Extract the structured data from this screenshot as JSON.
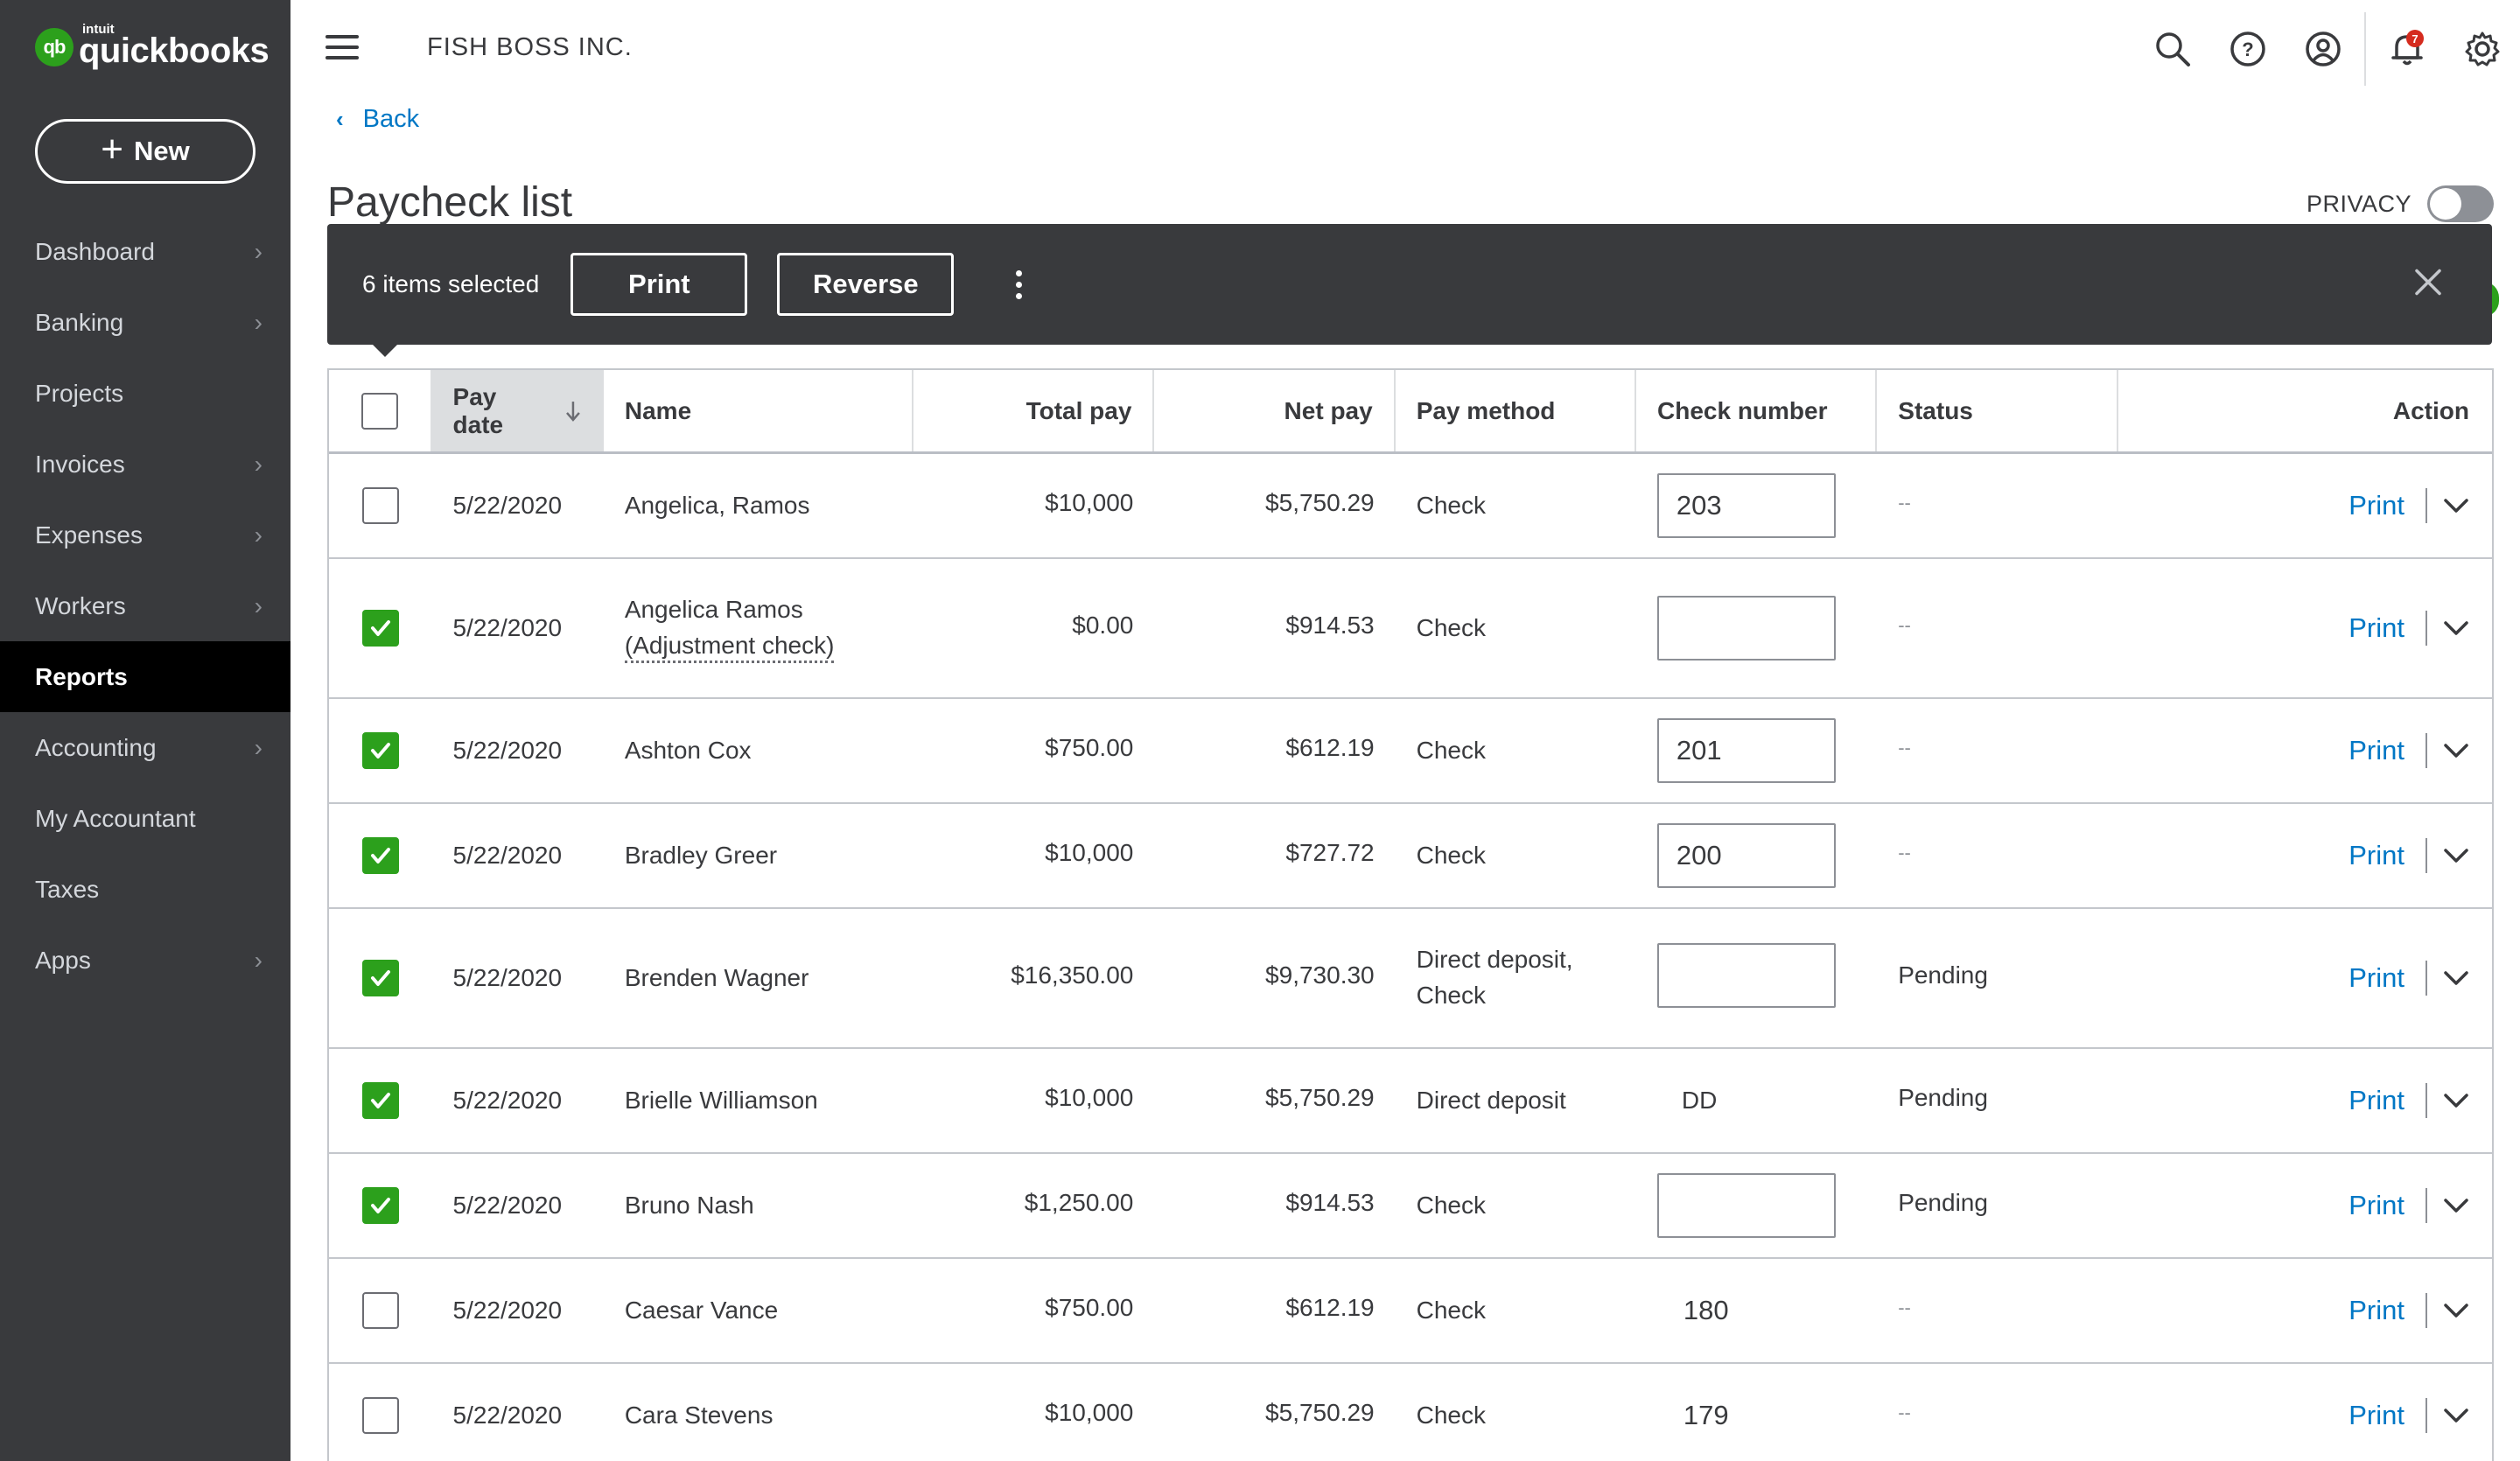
{
  "brand": {
    "intuit": "intuit",
    "name": "quickbooks",
    "mark": "qb"
  },
  "sidebar": {
    "new_label": "New",
    "items": [
      {
        "label": "Dashboard",
        "chevron": true,
        "active": false
      },
      {
        "label": "Banking",
        "chevron": true,
        "active": false
      },
      {
        "label": "Projects",
        "chevron": false,
        "active": false
      },
      {
        "label": "Invoices",
        "chevron": true,
        "active": false
      },
      {
        "label": "Expenses",
        "chevron": true,
        "active": false
      },
      {
        "label": "Workers",
        "chevron": true,
        "active": false
      },
      {
        "label": "Reports",
        "chevron": false,
        "active": true
      },
      {
        "label": "Accounting",
        "chevron": true,
        "active": false
      },
      {
        "label": "My Accountant",
        "chevron": false,
        "active": false
      },
      {
        "label": "Taxes",
        "chevron": false,
        "active": false
      },
      {
        "label": "Apps",
        "chevron": true,
        "active": false
      }
    ]
  },
  "header": {
    "company": "FISH BOSS INC.",
    "notification_count": "7",
    "icons": [
      "search-icon",
      "help-icon",
      "account-icon",
      "notification-bell-icon",
      "settings-gear-icon"
    ]
  },
  "page": {
    "back_label": "Back",
    "title": "Paycheck list",
    "privacy_label": "PRIVACY",
    "privacy_on": false
  },
  "selection_bar": {
    "count_text": "6 items selected",
    "print_label": "Print",
    "reverse_label": "Reverse"
  },
  "table": {
    "columns": {
      "pay_date": "Pay date",
      "name": "Name",
      "total_pay": "Total pay",
      "net_pay": "Net pay",
      "pay_method": "Pay method",
      "check_number": "Check number",
      "status": "Status",
      "action": "Action"
    },
    "rows": [
      {
        "checked": false,
        "date": "5/22/2020",
        "name": "Angelica, Ramos",
        "name_sub": "",
        "total": "$10,000",
        "net": "$5,750.29",
        "method": "Check",
        "method2": "",
        "check": "203",
        "check_editable": true,
        "status": "--",
        "action": "Print"
      },
      {
        "checked": true,
        "date": "5/22/2020",
        "name": "Angelica Ramos",
        "name_sub": "(Adjustment check)",
        "total": "$0.00",
        "net": "$914.53",
        "method": "Check",
        "method2": "",
        "check": "",
        "check_editable": true,
        "status": "--",
        "action": "Print"
      },
      {
        "checked": true,
        "date": "5/22/2020",
        "name": "Ashton Cox",
        "name_sub": "",
        "total": "$750.00",
        "net": "$612.19",
        "method": "Check",
        "method2": "",
        "check": "201",
        "check_editable": true,
        "status": "--",
        "action": "Print"
      },
      {
        "checked": true,
        "date": "5/22/2020",
        "name": "Bradley Greer",
        "name_sub": "",
        "total": "$10,000",
        "net": "$727.72",
        "method": "Check",
        "method2": "",
        "check": "200",
        "check_editable": true,
        "status": "--",
        "action": "Print"
      },
      {
        "checked": true,
        "date": "5/22/2020",
        "name": "Brenden Wagner",
        "name_sub": "",
        "total": "$16,350.00",
        "net": "$9,730.30",
        "method": "Direct deposit,",
        "method2": "Check",
        "check": "",
        "check_editable": true,
        "status": "Pending",
        "action": "Print"
      },
      {
        "checked": true,
        "date": "5/22/2020",
        "name": "Brielle Williamson",
        "name_sub": "",
        "total": "$10,000",
        "net": "$5,750.29",
        "method": "Direct deposit",
        "method2": "",
        "check": "DD",
        "check_editable": false,
        "status": "Pending",
        "action": "Print"
      },
      {
        "checked": true,
        "date": "5/22/2020",
        "name": "Bruno Nash",
        "name_sub": "",
        "total": "$1,250.00",
        "net": "$914.53",
        "method": "Check",
        "method2": "",
        "check": "",
        "check_editable": true,
        "status": "Pending",
        "action": "Print"
      },
      {
        "checked": false,
        "date": "5/22/2020",
        "name": "Caesar Vance",
        "name_sub": "",
        "total": "$750.00",
        "net": "$612.19",
        "method": "Check",
        "method2": "",
        "check": "180",
        "check_editable": false,
        "status": "--",
        "action": "Print"
      },
      {
        "checked": false,
        "date": "5/22/2020",
        "name": "Cara Stevens",
        "name_sub": "",
        "total": "$10,000",
        "net": "$5,750.29",
        "method": "Check",
        "method2": "",
        "check": "179",
        "check_editable": false,
        "status": "--",
        "action": "Print"
      }
    ]
  },
  "colors": {
    "sidebar": "#393a3d",
    "accent_green": "#2ca01c",
    "link_blue": "#0077c5",
    "badge_red": "#d52b1e"
  }
}
